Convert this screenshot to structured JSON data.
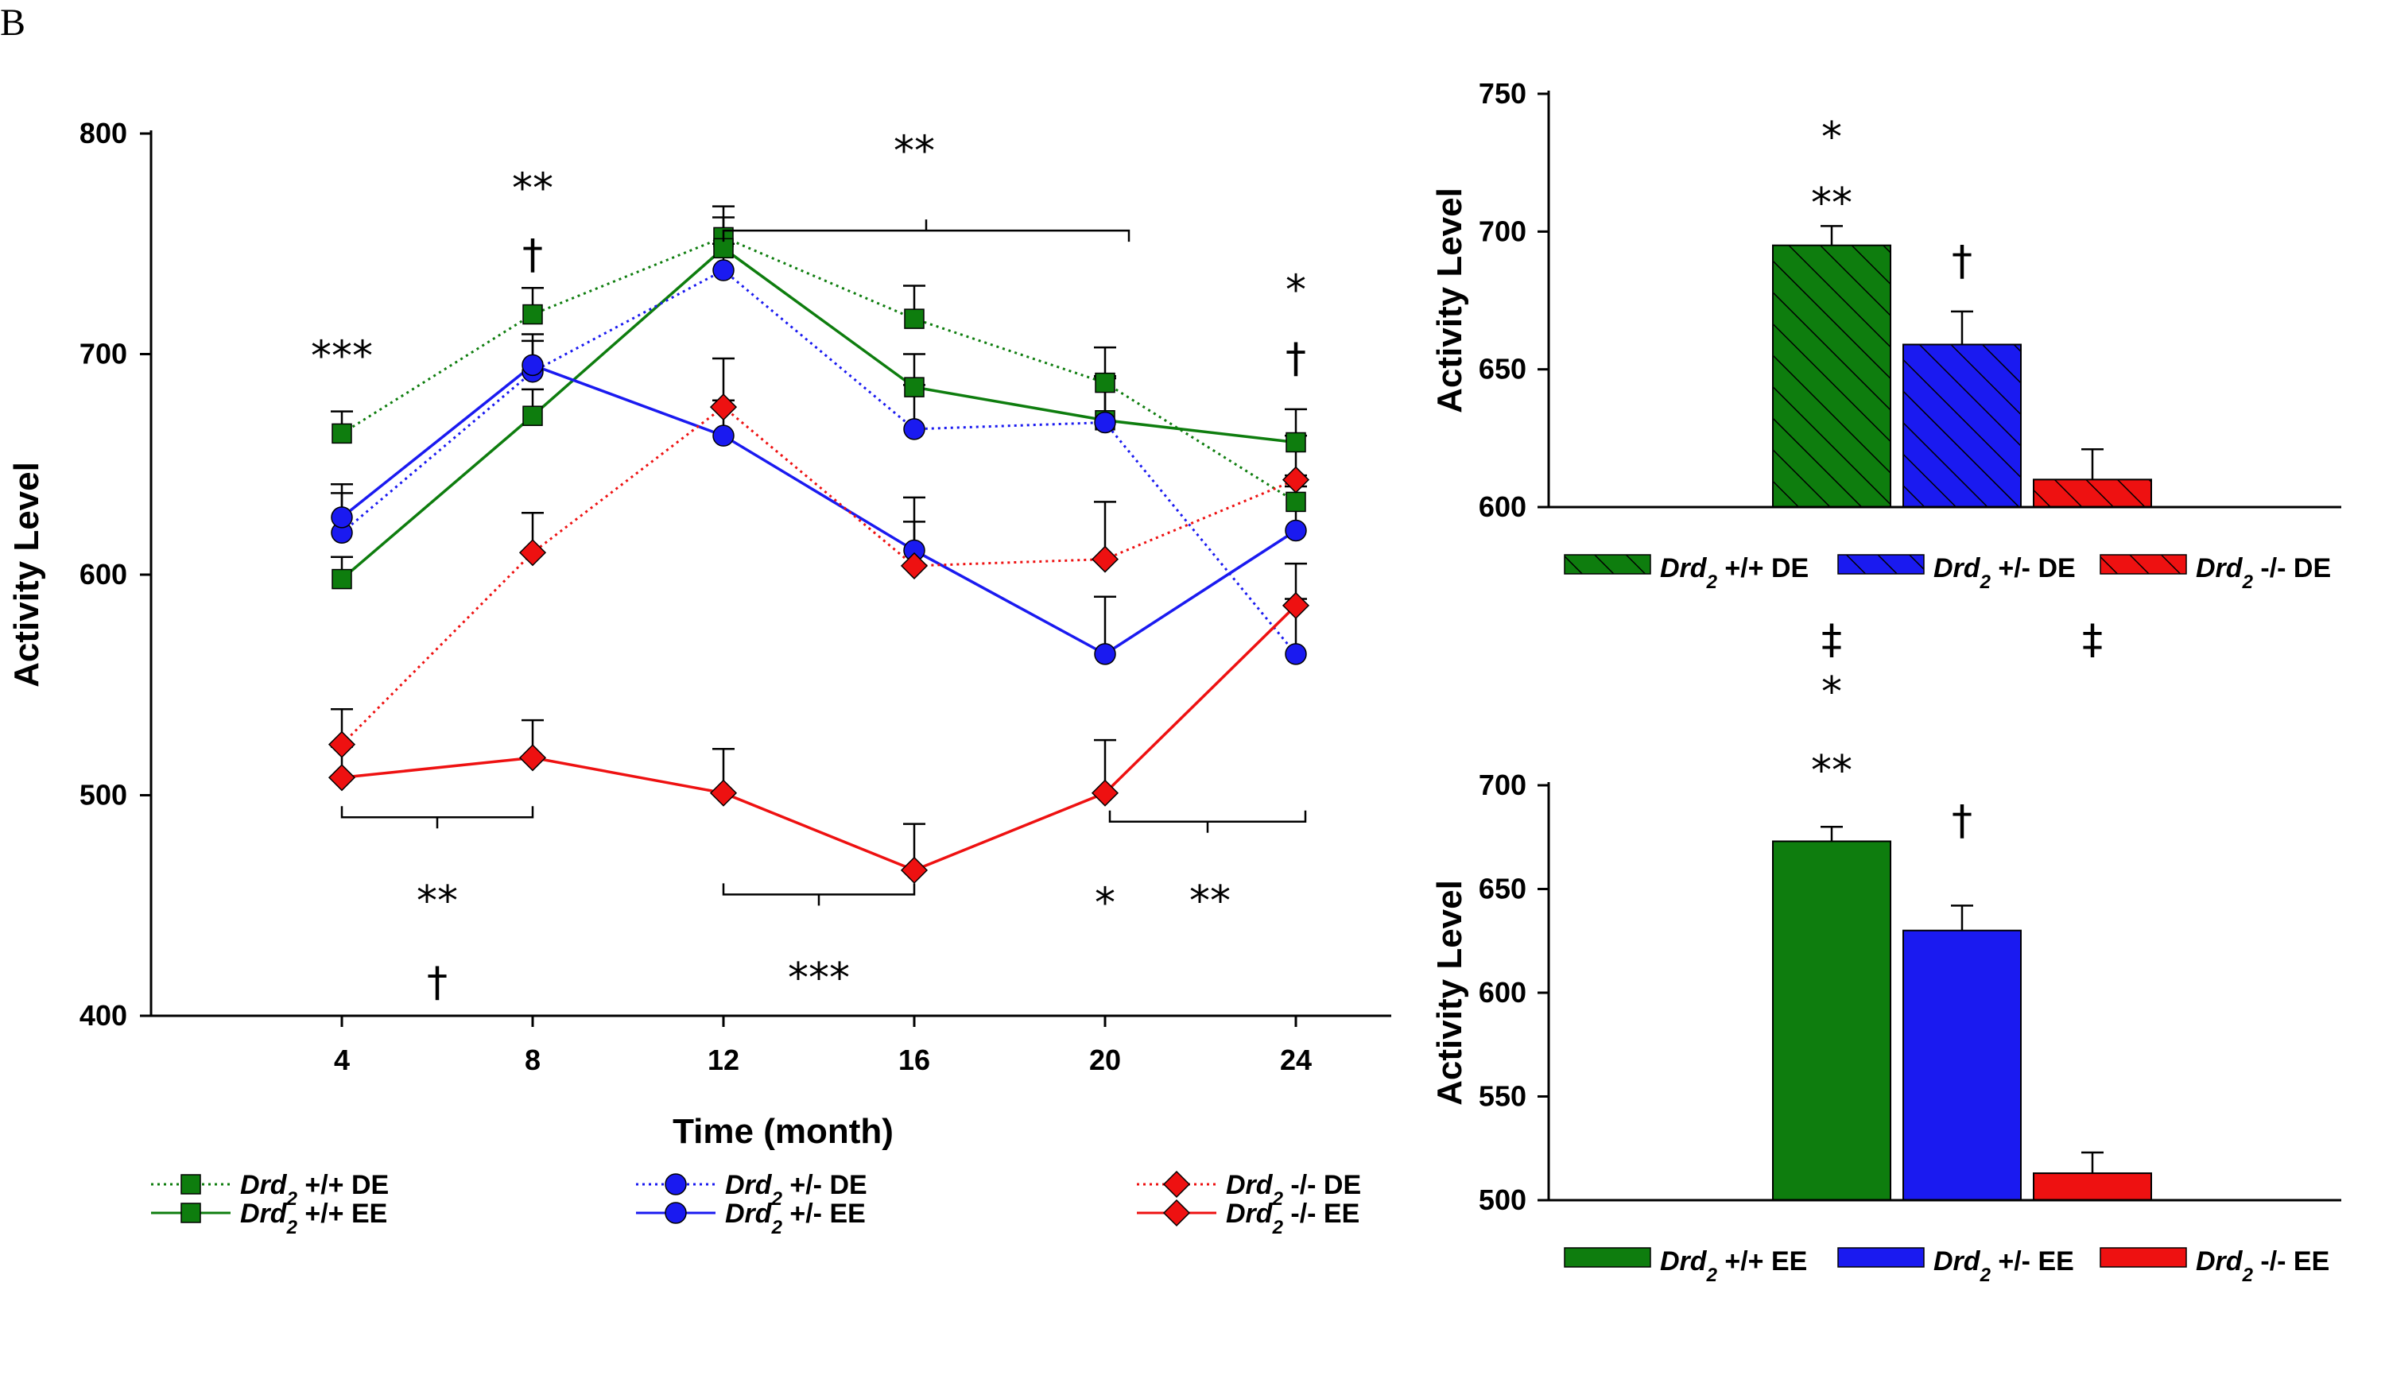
{
  "panel_label": "B",
  "colors": {
    "green": "#0e7d0e",
    "blue": "#1a1af0",
    "red": "#ee1111",
    "axis": "#000000"
  },
  "chart_data": [
    {
      "type": "line",
      "xlabel": "Time (month)",
      "ylabel": "Activity Level",
      "x": [
        4,
        8,
        12,
        16,
        20,
        24
      ],
      "xlim": [
        0,
        26
      ],
      "ylim": [
        400,
        800
      ],
      "yticks": [
        400,
        500,
        600,
        700,
        800
      ],
      "xticks": [
        4,
        8,
        12,
        16,
        20,
        24
      ],
      "series": [
        {
          "gene": "Drd",
          "sub": "2",
          "genotype": "+/+ DE",
          "color": "green",
          "dash": "dotted",
          "marker": "square",
          "values": [
            664,
            718,
            753,
            716,
            687,
            633
          ],
          "errors": [
            10,
            12,
            14,
            15,
            16,
            12
          ]
        },
        {
          "gene": "Drd",
          "sub": "2",
          "genotype": "+/+ EE",
          "color": "green",
          "dash": "solid",
          "marker": "square",
          "values": [
            598,
            672,
            748,
            685,
            670,
            660
          ],
          "errors": [
            10,
            12,
            14,
            15,
            20,
            15
          ]
        },
        {
          "gene": "Drd",
          "sub": "2",
          "genotype": "+/- DE",
          "color": "blue",
          "dash": "dotted",
          "marker": "circle",
          "values": [
            619,
            692,
            738,
            666,
            669,
            564
          ],
          "errors": [
            18,
            14,
            12,
            20,
            20,
            25
          ]
        },
        {
          "gene": "Drd",
          "sub": "2",
          "genotype": "+/- EE",
          "color": "blue",
          "dash": "solid",
          "marker": "circle",
          "values": [
            626,
            695,
            663,
            611,
            564,
            620
          ],
          "errors": [
            15,
            14,
            16,
            24,
            26,
            20
          ]
        },
        {
          "gene": "Drd",
          "sub": "2",
          "genotype": "-/- DE",
          "color": "red",
          "dash": "dotted",
          "marker": "diamond",
          "values": [
            523,
            610,
            676,
            604,
            607,
            643
          ],
          "errors": [
            16,
            18,
            22,
            20,
            26,
            20
          ]
        },
        {
          "gene": "Drd",
          "sub": "2",
          "genotype": "-/- EE",
          "color": "red",
          "dash": "solid",
          "marker": "diamond",
          "values": [
            508,
            517,
            501,
            466,
            501,
            586
          ],
          "errors": [
            14,
            17,
            20,
            21,
            24,
            19
          ]
        }
      ],
      "annotations": [
        {
          "text": "***",
          "x": 4,
          "y": 700
        },
        {
          "text": "†",
          "x": 8,
          "y": 746
        },
        {
          "text": "**",
          "x": 8,
          "y": 776
        },
        {
          "text": "**",
          "x": 16,
          "y": 793
        },
        {
          "text": "*",
          "x": 24,
          "y": 730
        },
        {
          "text": "†",
          "x": 24,
          "y": 699
        },
        {
          "text": "**",
          "x": 6,
          "y": 453
        },
        {
          "text": "†",
          "x": 6,
          "y": 416
        },
        {
          "text": "***",
          "x": 14,
          "y": 418
        },
        {
          "text": "*",
          "x": 20,
          "y": 452
        },
        {
          "text": "**",
          "x": 22.2,
          "y": 453
        }
      ],
      "brackets": [
        {
          "x1": 12,
          "x2": 20.5,
          "y": 756,
          "direction": "down"
        },
        {
          "x1": 4,
          "x2": 8,
          "y": 490,
          "direction": "up"
        },
        {
          "x1": 12,
          "x2": 16,
          "y": 455,
          "direction": "up"
        },
        {
          "x1": 20.1,
          "x2": 24.2,
          "y": 488,
          "direction": "up"
        }
      ]
    },
    {
      "type": "bar",
      "ylabel": "Activity Level",
      "ylim": [
        600,
        750
      ],
      "yticks": [
        600,
        650,
        700,
        750
      ],
      "pattern": "hatched",
      "categories": [
        "Drd2 +/+ DE",
        "Drd2 +/- DE",
        "Drd2 -/- DE"
      ],
      "series": [
        {
          "gene": "Drd",
          "sub": "2",
          "genotype": "+/+ DE",
          "color": "green",
          "value": 695,
          "error": 7
        },
        {
          "gene": "Drd",
          "sub": "2",
          "genotype": "+/- DE",
          "color": "blue",
          "value": 659,
          "error": 12
        },
        {
          "gene": "Drd",
          "sub": "2",
          "genotype": "-/- DE",
          "color": "red",
          "value": 610,
          "error": 11
        }
      ],
      "annotations": [
        {
          "text": "*",
          "bar": 0,
          "y": 735
        },
        {
          "text": "**",
          "bar": 0,
          "y": 711
        },
        {
          "text": "†",
          "bar": 1,
          "y": 690
        }
      ]
    },
    {
      "type": "bar",
      "ylabel": "Activity Level",
      "ylim": [
        500,
        700
      ],
      "yticks": [
        500,
        550,
        600,
        650,
        700
      ],
      "pattern": "solid",
      "categories": [
        "Drd2 +/+ EE",
        "Drd2 +/- EE",
        "Drd2 -/- EE"
      ],
      "series": [
        {
          "gene": "Drd",
          "sub": "2",
          "genotype": "+/+ EE",
          "color": "green",
          "value": 673,
          "error": 7
        },
        {
          "gene": "Drd",
          "sub": "2",
          "genotype": "+/- EE",
          "color": "blue",
          "value": 630,
          "error": 12
        },
        {
          "gene": "Drd",
          "sub": "2",
          "genotype": "-/- EE",
          "color": "red",
          "value": 513,
          "error": 10
        }
      ],
      "annotations": [
        {
          "text": "*",
          "bar": 0,
          "y": 746
        },
        {
          "text": "**",
          "bar": 0,
          "y": 708
        },
        {
          "text": "†",
          "bar": 1,
          "y": 684
        }
      ],
      "top_annotations": [
        {
          "text": "‡",
          "bar": 0
        },
        {
          "text": "‡",
          "bar": 2
        }
      ]
    }
  ]
}
